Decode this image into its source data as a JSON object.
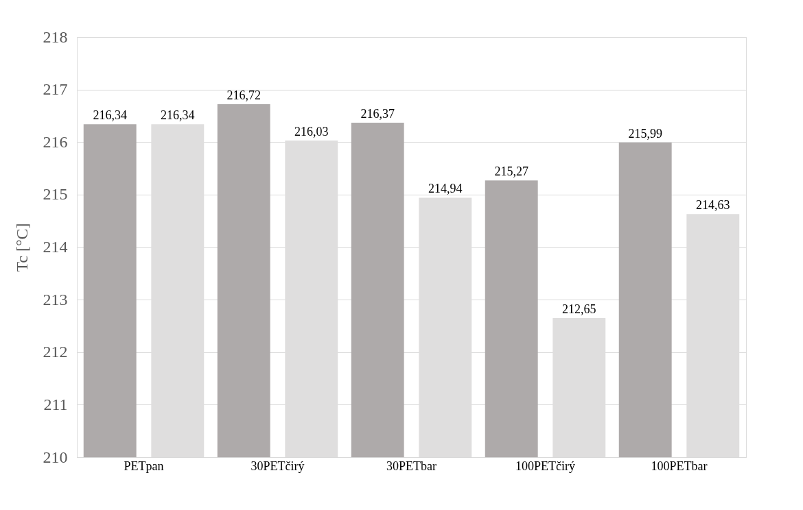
{
  "chart_data": {
    "type": "bar",
    "ylabel": "Tc [°C]",
    "categories": [
      "PETpan",
      "30PETčirý",
      "30PETbar",
      "100PETčirý",
      "100PETbar"
    ],
    "series": [
      {
        "color": "#aeaaaa",
        "values": [
          216.34,
          216.72,
          216.37,
          215.27,
          215.99
        ],
        "value_labels": [
          "216,34",
          "216,72",
          "216,37",
          "215,27",
          "215,99"
        ]
      },
      {
        "color": "#dfdede",
        "values": [
          216.34,
          216.03,
          214.94,
          212.65,
          214.63
        ],
        "value_labels": [
          "216,34",
          "216,03",
          "214,94",
          "212,65",
          "214,63"
        ]
      }
    ],
    "ylim": [
      210,
      218
    ],
    "yticks": [
      210,
      211,
      212,
      213,
      214,
      215,
      216,
      217,
      218
    ],
    "grid": "y",
    "legend": false
  }
}
